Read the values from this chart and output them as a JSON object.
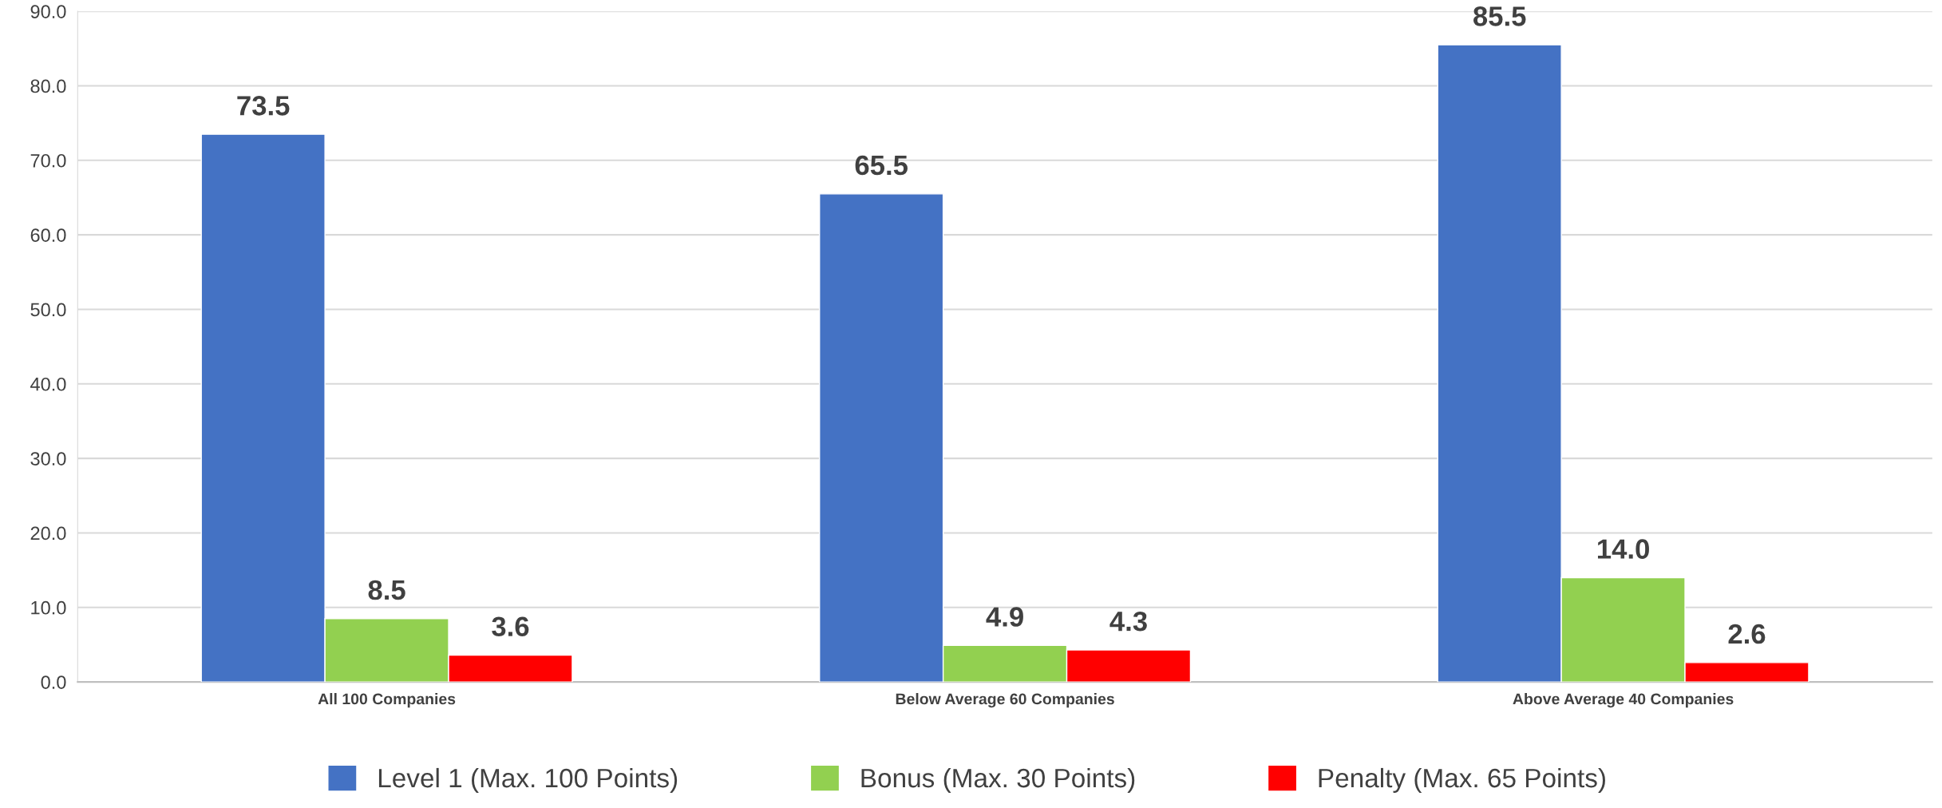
{
  "chart_data": {
    "type": "bar",
    "categories": [
      "All 100 Companies",
      "Below Average 60 Companies",
      "Above Average 40 Companies"
    ],
    "series": [
      {
        "name": "Level 1 (Max. 100 Points)",
        "color": "#4472c4",
        "values": [
          73.5,
          65.5,
          85.5
        ],
        "value_labels": [
          "73.5",
          "65.5",
          "85.5"
        ]
      },
      {
        "name": "Bonus (Max. 30 Points)",
        "color": "#92d050",
        "values": [
          8.5,
          4.9,
          14.0
        ],
        "value_labels": [
          "8.5",
          "4.9",
          "14.0"
        ]
      },
      {
        "name": "Penalty (Max. 65 Points)",
        "color": "#ff0000",
        "values": [
          3.6,
          4.3,
          2.6
        ],
        "value_labels": [
          "3.6",
          "4.3",
          "2.6"
        ]
      }
    ],
    "ylim": [
      0,
      90
    ],
    "yticks": [
      {
        "value": 0,
        "label": "0.0"
      },
      {
        "value": 10,
        "label": "10.0"
      },
      {
        "value": 20,
        "label": "20.0"
      },
      {
        "value": 30,
        "label": "30.0"
      },
      {
        "value": 40,
        "label": "40.0"
      },
      {
        "value": 50,
        "label": "50.0"
      },
      {
        "value": 60,
        "label": "60.0"
      },
      {
        "value": 70,
        "label": "70.0"
      },
      {
        "value": 80,
        "label": "80.0"
      },
      {
        "value": 90,
        "label": "90.0"
      }
    ],
    "grid": "y",
    "legend": "bottom"
  }
}
